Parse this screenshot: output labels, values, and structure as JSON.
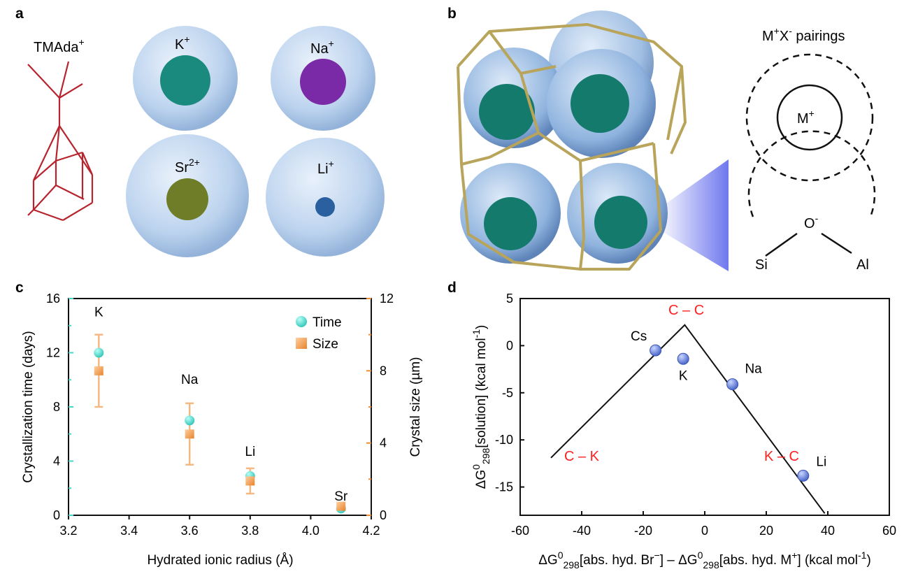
{
  "panels": {
    "a": {
      "letter": "a",
      "molecule_label": "TMAda",
      "molecule_charge": "+",
      "ions": [
        {
          "symbol": "K",
          "charge": "+",
          "color": "#1a8a7e"
        },
        {
          "symbol": "Na",
          "charge": "+",
          "color": "#7a2aa6"
        },
        {
          "symbol": "Sr",
          "charge": "2+",
          "color": "#6f7d28"
        },
        {
          "symbol": "Li",
          "charge": "+",
          "color": "#2a5fa0"
        }
      ]
    },
    "b": {
      "letter": "b",
      "title": "M",
      "title_sup1": "+",
      "title_mid": "X",
      "title_sup2": "-",
      "title_end": " pairings",
      "cation_label": "M",
      "cation_charge": "+",
      "anion_label": "O",
      "anion_charge": "-",
      "left_atom": "Si",
      "right_atom": "Al"
    },
    "c": {
      "letter": "c"
    },
    "d": {
      "letter": "d"
    }
  },
  "chart_data": [
    {
      "panel": "c",
      "type": "scatter",
      "xlabel": "Hydrated ionic radius (Å)",
      "ylabel": "Crystallization time (days)",
      "y2label": "Crystal size (µm)",
      "xlim": [
        3.2,
        4.2
      ],
      "ylim": [
        0,
        16
      ],
      "y2lim": [
        0,
        12
      ],
      "xticks": [
        "3.2",
        "3.4",
        "3.6",
        "3.8",
        "4.0",
        "4.2"
      ],
      "yticks": [
        "0",
        "4",
        "8",
        "12",
        "16"
      ],
      "y2ticks": [
        "0",
        "4",
        "8",
        "12"
      ],
      "legend_position": "top-right",
      "colors": {
        "time": "#5ce0d4",
        "size": "#f29a48",
        "left_axis": "#48d6cb",
        "right_axis": "#ef8d2e"
      },
      "series": [
        {
          "name": "Time",
          "axis": "left",
          "points": [
            {
              "x": 3.3,
              "y": 12
            },
            {
              "x": 3.6,
              "y": 7
            },
            {
              "x": 3.8,
              "y": 2.9
            },
            {
              "x": 4.1,
              "y": 0.5
            }
          ]
        },
        {
          "name": "Size",
          "axis": "right",
          "points": [
            {
              "x": 3.3,
              "y": 8.0,
              "err": 2.0
            },
            {
              "x": 3.6,
              "y": 4.5,
              "err": 1.7
            },
            {
              "x": 3.8,
              "y": 1.9,
              "err": 0.7
            },
            {
              "x": 4.1,
              "y": 0.5,
              "err": 0
            }
          ]
        }
      ],
      "point_labels": [
        "K",
        "Na",
        "Li",
        "Sr"
      ],
      "legend": {
        "time": "Time",
        "size": "Size"
      }
    },
    {
      "panel": "d",
      "type": "scatter",
      "xlabel_a": "ΔG",
      "xlabel_b": "[abs. hyd. Br",
      "xlabel_c": "] – ΔG",
      "xlabel_d": "[abs. hyd. M",
      "xlabel_e": "] (kcal mol",
      "xlabel_f": ")",
      "ylabel_a": "ΔG",
      "ylabel_b": "[solution] (kcal mol",
      "ylabel_c": ")",
      "sup_zero": "0",
      "sub_298": "298",
      "sup_minus": "−",
      "sup_plus": "+",
      "sup_minus1": "-1",
      "xlim": [
        -60,
        60
      ],
      "ylim": [
        -18,
        5
      ],
      "xticks": [
        "-60",
        "-40",
        "-20",
        "0",
        "20",
        "40",
        "60"
      ],
      "yticks": [
        "5",
        "0",
        "-5",
        "-10",
        "-15"
      ],
      "points": [
        {
          "label": "Cs",
          "x": -16,
          "y": -0.5
        },
        {
          "label": "K",
          "x": -7,
          "y": -1.4
        },
        {
          "label": "Na",
          "x": 9,
          "y": -4.1
        },
        {
          "label": "Li",
          "x": 32,
          "y": -13.8
        }
      ],
      "volcano_line": [
        {
          "x": -50,
          "y": -11.9
        },
        {
          "x": -6.5,
          "y": 2.2
        },
        {
          "x": 39,
          "y": -17.8
        }
      ],
      "annotations": [
        {
          "text": "C – C",
          "x": -6,
          "y": 3.3
        },
        {
          "text": "C – K",
          "x": -40,
          "y": -12.2
        },
        {
          "text": "K – C",
          "x": 25,
          "y": -12.2
        }
      ],
      "colors": {
        "points": "#6a85dc",
        "annotations": "#ff2020"
      }
    }
  ]
}
